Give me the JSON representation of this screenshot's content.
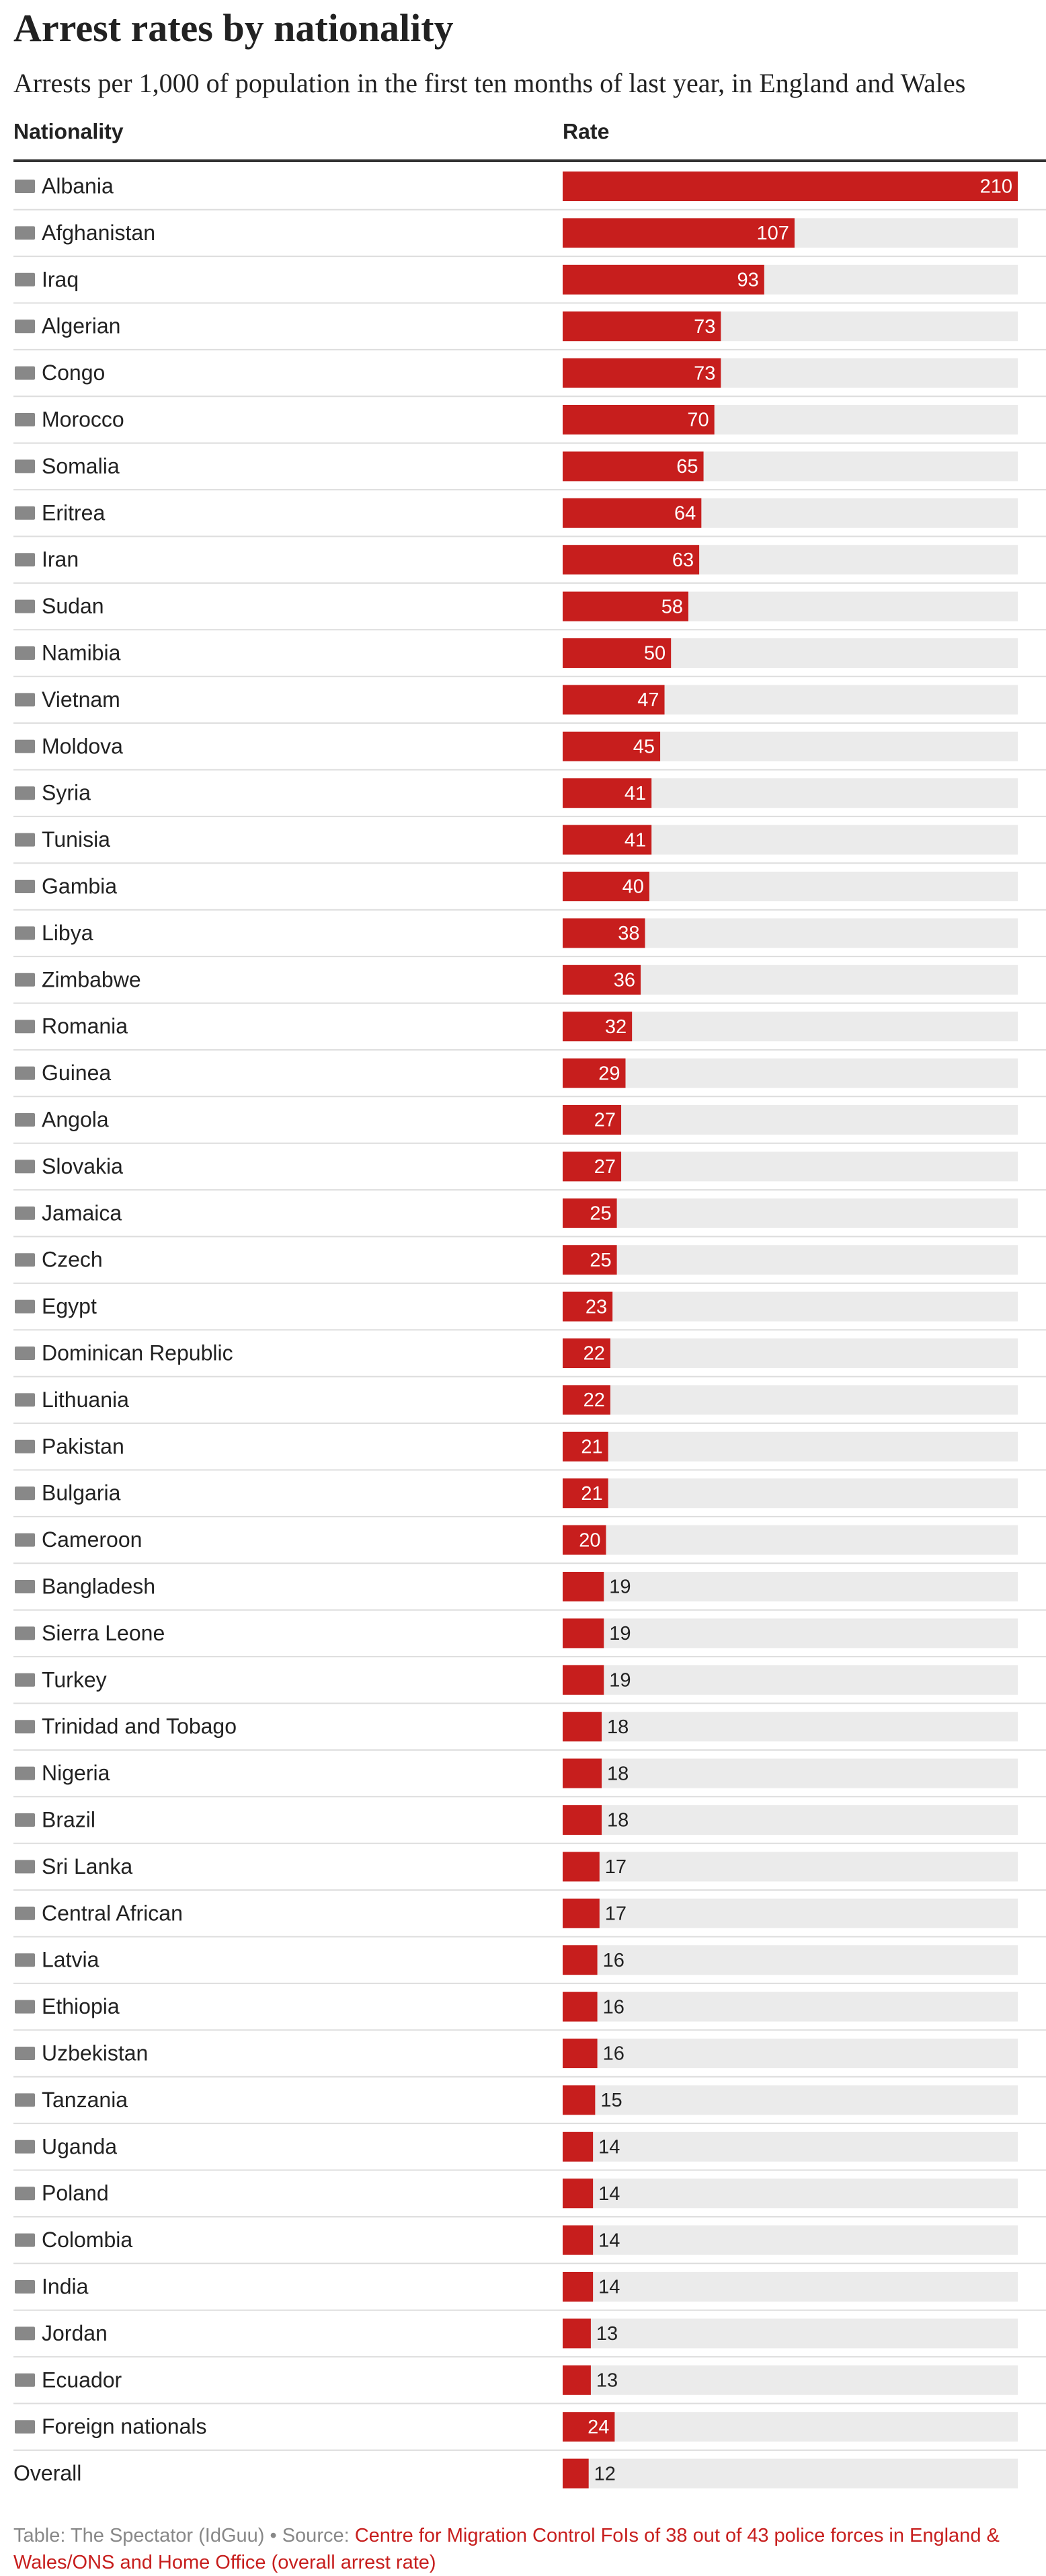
{
  "chart_data": {
    "type": "bar",
    "title": "Arrest rates by nationality",
    "subtitle": "Arrests per 1,000 of population in the first ten months of last year, in England and Wales",
    "category_header": "Nationality",
    "value_header": "Rate",
    "categories": [
      "Albania",
      "Afghanistan",
      "Iraq",
      "Algerian",
      "Congo",
      "Morocco",
      "Somalia",
      "Eritrea",
      "Iran",
      "Sudan",
      "Namibia",
      "Vietnam",
      "Moldova",
      "Syria",
      "Tunisia",
      "Gambia",
      "Libya",
      "Zimbabwe",
      "Romania",
      "Guinea",
      "Angola",
      "Slovakia",
      "Jamaica",
      "Czech",
      "Egypt",
      "Dominican Republic",
      "Lithuania",
      "Pakistan",
      "Bulgaria",
      "Cameroon",
      "Bangladesh",
      "Sierra Leone",
      "Turkey",
      "Trinidad and Tobago",
      "Nigeria",
      "Brazil",
      "Sri Lanka",
      "Central African",
      "Latvia",
      "Ethiopia",
      "Uzbekistan",
      "Tanzania",
      "Uganda",
      "Poland",
      "Colombia",
      "India",
      "Jordan",
      "Ecuador",
      "Foreign nationals",
      "Overall"
    ],
    "values": [
      210,
      107,
      93,
      73,
      73,
      70,
      65,
      64,
      63,
      58,
      50,
      47,
      45,
      41,
      41,
      40,
      38,
      36,
      32,
      29,
      27,
      27,
      25,
      25,
      23,
      22,
      22,
      21,
      21,
      20,
      19,
      19,
      19,
      18,
      18,
      18,
      17,
      17,
      16,
      16,
      16,
      15,
      14,
      14,
      14,
      14,
      13,
      13,
      24,
      12
    ],
    "color": "#c71e1d",
    "track_color": "#ebebeb",
    "credit": "Table: The Spectator (IdGuu) • Source: ",
    "source": "Centre for Migration Control FoIs of 38 out of 43 police forces in England & Wales/ONS and Home Office (overall arrest rate)"
  }
}
